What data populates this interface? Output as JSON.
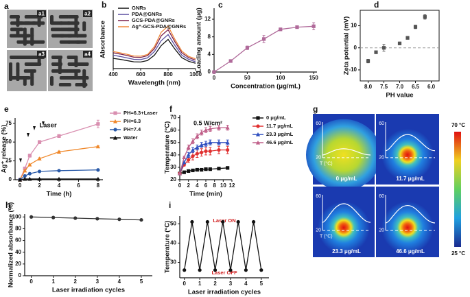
{
  "chart_data": [
    {
      "type": "line",
      "label": "b",
      "x_label": "Wavelength (nm)",
      "y_label": "Absorbance",
      "x": [
        400,
        450,
        500,
        550,
        600,
        650,
        700,
        750,
        800,
        850,
        900,
        950,
        1000
      ],
      "xlim": [
        400,
        1000
      ],
      "xticks": [
        400,
        600,
        800,
        1000
      ],
      "ylim": [
        0,
        2.4
      ],
      "series": [
        {
          "name": "GNRs",
          "color": "#111111",
          "values": [
            0.42,
            0.38,
            0.33,
            0.28,
            0.27,
            0.33,
            0.55,
            0.95,
            1.2,
            0.8,
            0.45,
            0.3,
            0.22
          ]
        },
        {
          "name": "PDA@GNRs",
          "color": "#5a4fa0",
          "values": [
            0.55,
            0.5,
            0.44,
            0.38,
            0.37,
            0.44,
            0.7,
            1.15,
            1.4,
            0.95,
            0.55,
            0.38,
            0.28
          ]
        },
        {
          "name": "GCS-PDA@GNRs",
          "color": "#7a1f4a",
          "values": [
            0.65,
            0.6,
            0.54,
            0.47,
            0.46,
            0.53,
            0.82,
            1.35,
            1.6,
            1.1,
            0.65,
            0.45,
            0.35
          ]
        },
        {
          "name": "Ag⁺-GCS-PDA@GNRs",
          "color": "#f0883a",
          "values": [
            0.7,
            0.65,
            0.59,
            0.52,
            0.51,
            0.58,
            0.9,
            1.5,
            1.75,
            1.2,
            0.72,
            0.5,
            0.4
          ]
        }
      ]
    },
    {
      "type": "line",
      "label": "c",
      "x_label": "Concentration (μg/mL)",
      "y_label": "Loading amount (μg)",
      "x": [
        0,
        25,
        50,
        75,
        100,
        125,
        150
      ],
      "xlim": [
        0,
        155
      ],
      "xticks": [
        0,
        50,
        100,
        150
      ],
      "ylim": [
        0,
        14.5
      ],
      "yticks": [
        0,
        4,
        8,
        12
      ],
      "series": [
        {
          "color": "#b06a9a",
          "marker": "square",
          "values": [
            0,
            2.5,
            5.5,
            7.5,
            9.7,
            10.2,
            10.4
          ],
          "errors": [
            0,
            0.3,
            0.4,
            0.8,
            0.3,
            0.3,
            0.8
          ]
        }
      ]
    },
    {
      "type": "scatter",
      "label": "d",
      "x_label": "PH value",
      "y_label": "Zeta potential (mV)",
      "x": [
        8.0,
        7.75,
        7.5,
        7.0,
        6.75,
        6.5,
        6.2
      ],
      "xlim": [
        8.25,
        5.75
      ],
      "xticks": [
        {
          "value": 8,
          "label": "8.0"
        },
        7.5,
        {
          "value": 7,
          "label": "7.0"
        },
        6.5,
        {
          "value": 6,
          "label": "6.0"
        }
      ],
      "ylim": [
        -15,
        17
      ],
      "yticks": [
        -10,
        0,
        10
      ],
      "hline": 0,
      "frame": true,
      "series": [
        {
          "color": "#555555",
          "marker": "square",
          "values": [
            -6,
            -2,
            0,
            2,
            4.5,
            9.5,
            14
          ],
          "errors": [
            0.8,
            0.6,
            1.5,
            0.6,
            0.6,
            0.8,
            1
          ]
        }
      ]
    },
    {
      "type": "line",
      "label": "e",
      "x_label": "Time (h)",
      "y_label": "Ag⁺ release (%)",
      "annotations": [
        "Laser"
      ],
      "x": [
        0,
        0.5,
        1,
        2,
        4,
        8
      ],
      "xlim": [
        -0.5,
        8.5
      ],
      "xticks": [
        0,
        2,
        4,
        6,
        8
      ],
      "ylim": [
        0,
        82
      ],
      "yticks": [
        0,
        25,
        50,
        75
      ],
      "series": [
        {
          "name": "PH=6.3+Laser",
          "color": "#d98fb0",
          "marker": "square",
          "values": [
            0,
            15,
            32,
            50,
            58,
            74
          ],
          "errors": [
            0,
            1,
            2,
            2,
            2,
            5
          ]
        },
        {
          "name": "PH=6.3",
          "color": "#f0882a",
          "marker": "triangle",
          "values": [
            0,
            12,
            20,
            28,
            37,
            44
          ],
          "errors": [
            0,
            1,
            1,
            1,
            1,
            1
          ]
        },
        {
          "name": "PH=7.4",
          "color": "#2a5aa8",
          "marker": "circle",
          "values": [
            0,
            5,
            8,
            11,
            12,
            13
          ],
          "errors": [
            0,
            0.5,
            0.5,
            0.5,
            0.5,
            0.5
          ]
        },
        {
          "name": "Water",
          "color": "#111111",
          "marker": "triangle",
          "values": [
            0,
            1,
            1,
            1,
            1,
            1
          ],
          "errors": [
            0,
            0,
            0,
            0,
            0,
            0
          ]
        }
      ]
    },
    {
      "type": "line",
      "label": "f",
      "x_label": "Time (min)",
      "y_label": "Temperature (°C)",
      "subtitle": "0.5 W/cm²",
      "x": [
        0,
        1,
        2,
        3,
        4,
        5,
        6,
        7,
        9,
        11
      ],
      "xlim": [
        0,
        12
      ],
      "xticks": [
        0,
        2,
        4,
        6,
        8,
        10,
        12
      ],
      "ylim": [
        20,
        72
      ],
      "yticks": [
        20,
        30,
        40,
        50,
        60,
        70
      ],
      "series": [
        {
          "name": "0 μg/mL",
          "color": "#111111",
          "marker": "square",
          "values": [
            25,
            26,
            27,
            27.5,
            28,
            28,
            28.5,
            28.5,
            29,
            29.5
          ],
          "errors": [
            0,
            0.5,
            0.5,
            0.5,
            0.5,
            0.5,
            0.5,
            0.5,
            0.5,
            0.5
          ]
        },
        {
          "name": "11.7 μg/mL",
          "color": "#e03030",
          "marker": "circle",
          "values": [
            25,
            32,
            36,
            39,
            41,
            42,
            43,
            43,
            44,
            44
          ],
          "errors": [
            0,
            1,
            2,
            3,
            3,
            3,
            3,
            3,
            3,
            3
          ]
        },
        {
          "name": "23.3 μg/mL",
          "color": "#3050c0",
          "marker": "triangle",
          "values": [
            25,
            34,
            40,
            44,
            46,
            48,
            49,
            50,
            50,
            50
          ],
          "errors": [
            0,
            1,
            2,
            2,
            2,
            2,
            2,
            2,
            2,
            2
          ]
        },
        {
          "name": "46.6 μg/mL",
          "color": "#c0608a",
          "marker": "triangle",
          "values": [
            25,
            38,
            46,
            51,
            55,
            58,
            60,
            61,
            62,
            62
          ],
          "errors": [
            0,
            1,
            2,
            2,
            2,
            2,
            2,
            2,
            2,
            2
          ]
        }
      ]
    },
    {
      "type": "line",
      "label": "h",
      "x_label": "Laser irradiation cycles",
      "y_label": "Normalized absorbance (%)",
      "x": [
        0,
        1,
        2,
        3,
        4,
        5
      ],
      "xlim": [
        -0.3,
        5.5
      ],
      "xticks": [
        0,
        1,
        2,
        3,
        4,
        5
      ],
      "ylim": [
        0,
        105
      ],
      "yticks": [
        0,
        20,
        40,
        60,
        80,
        100
      ],
      "series": [
        {
          "color": "#333333",
          "marker": "circle",
          "values": [
            100,
            99,
            98,
            97,
            96,
            95
          ],
          "errors": [
            1,
            1,
            1,
            1,
            1,
            1
          ]
        }
      ]
    },
    {
      "type": "line",
      "label": "i",
      "x_label": "Laser irradiation cycles",
      "y_label": "Temperature (°C)",
      "annotations": [
        "Laser ON",
        "Laser OFF"
      ],
      "x": [
        0,
        0.5,
        1,
        1.5,
        2,
        2.5,
        3,
        3.5,
        4,
        4.5,
        5
      ],
      "xlim": [
        -0.3,
        5.5
      ],
      "xticks": [
        0,
        1,
        2,
        3,
        4,
        5
      ],
      "ylim": [
        22,
        54
      ],
      "yticks": [
        30,
        40,
        50
      ],
      "series": [
        {
          "color": "#111111",
          "marker": "circle",
          "values": [
            26,
            51,
            26,
            51,
            26,
            51,
            26,
            51,
            26,
            51,
            26
          ]
        }
      ]
    }
  ],
  "panels": {
    "a": {
      "label": "a",
      "images": [
        "a1",
        "a2",
        "a3",
        "a4"
      ]
    },
    "g": {
      "label": "g",
      "images": [
        "0 μg/mL",
        "11.7 μg/mL",
        "23.3 μg/mL",
        "46.6 μg/mL"
      ],
      "axis_top": "60",
      "axis_bottom": "20",
      "axis_title": "T (°C)",
      "scale_top": "70 °C",
      "scale_bottom": "25 °C"
    }
  }
}
